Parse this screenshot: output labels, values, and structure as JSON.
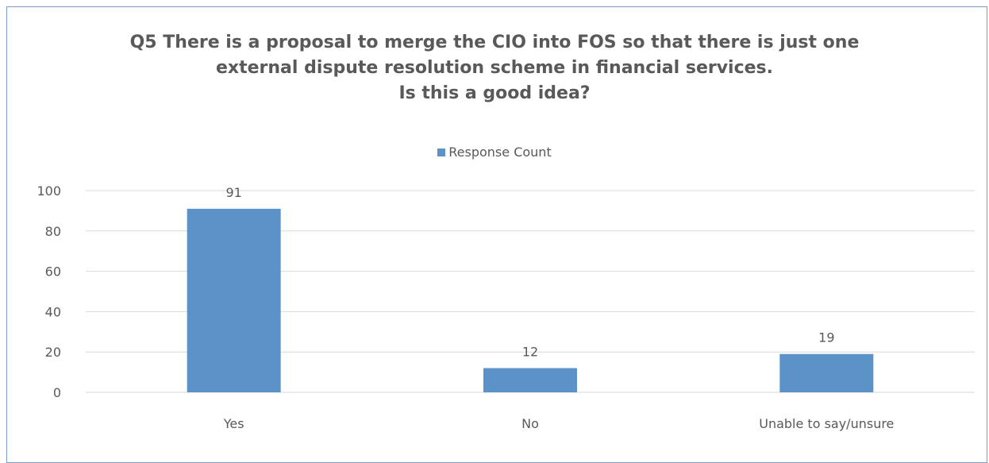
{
  "chart_data": {
    "type": "bar",
    "title": "Q5 There is a proposal to merge the CIO into FOS so that there is just one external dispute resolution scheme in financial services. Is this a good idea?",
    "title_lines": [
      "Q5 There is a proposal to merge the CIO into FOS so that there is just one",
      "external dispute resolution scheme in financial services.",
      "Is this a good idea?"
    ],
    "categories": [
      "Yes",
      "No",
      "Unable to say/unsure"
    ],
    "series": [
      {
        "name": "Response Count",
        "values": [
          91,
          12,
          19
        ],
        "color": "#5b93c9"
      }
    ],
    "data_labels": [
      "91",
      "12",
      "19"
    ],
    "ylim": [
      0,
      100
    ],
    "yticks": [
      0,
      20,
      40,
      60,
      80,
      100
    ],
    "ytick_labels": [
      "0",
      "20",
      "40",
      "60",
      "80",
      "100"
    ],
    "xlabel": "",
    "ylabel": "",
    "grid": true,
    "legend_position": "top"
  }
}
